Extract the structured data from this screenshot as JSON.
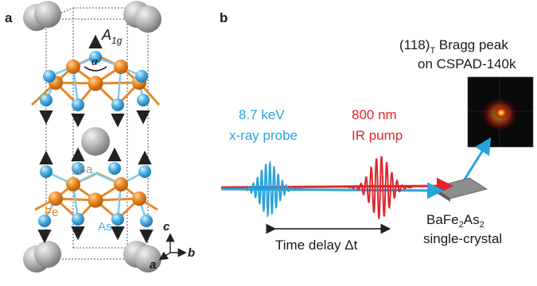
{
  "panel_a": {
    "label": "a",
    "mode_symbol": "A",
    "mode_subscript": "1g",
    "angle_symbol": "α",
    "atom_ba": "Ba",
    "atom_fe": "Fe",
    "atom_as": "As",
    "axis_c": "c",
    "axis_a": "a",
    "axis_b": "b"
  },
  "panel_b": {
    "label": "b",
    "bragg_line1_prefix": "(118)",
    "bragg_line1_sub": "T",
    "bragg_line1_suffix": " Bragg peak",
    "bragg_line2": "on CSPAD-140k",
    "probe_line1": "8.7 keV",
    "probe_line2": "x-ray probe",
    "pump_line1": "800 nm",
    "pump_line2": "IR pump",
    "delay_text": "Time delay Δt",
    "crystal_formula_parts": [
      "BaFe",
      "2",
      "As",
      "2"
    ],
    "crystal_line2": "single-crystal"
  },
  "colors": {
    "fe_orange": "#e8892a",
    "as_blue": "#4aaee0",
    "ba_grey": "#a9a9a9",
    "xray_blue": "#29a3dc",
    "ir_red": "#e0262c",
    "text_black": "#1a1a1a"
  }
}
